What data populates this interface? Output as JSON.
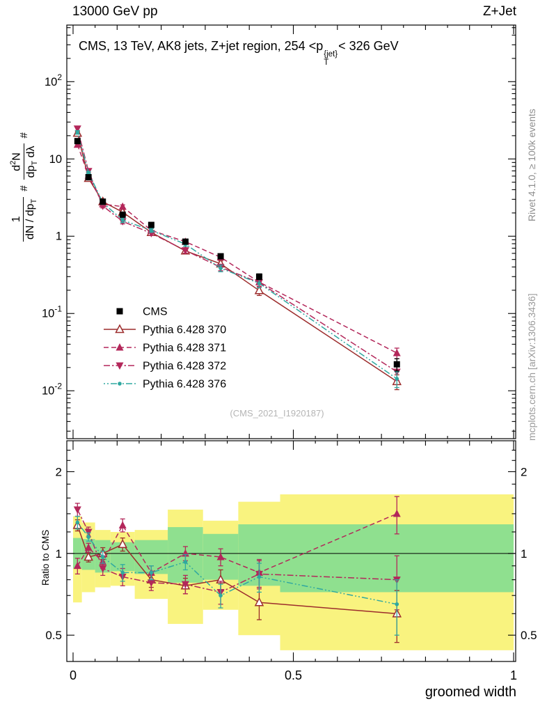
{
  "header": {
    "left_label": "13000 GeV pp",
    "right_label": "Z+Jet"
  },
  "main_title": {
    "prefix": "CMS, 13 TeV, AK8 jets, Z+jet region, 254 <p",
    "sup": "{jet}",
    "sub": "T",
    "suffix": "< 326 GeV"
  },
  "side_labels": {
    "rivet": "Rivet 4.1.0, ≥ 100k events",
    "mcplots": "mcplots.cern.ch [arXiv:1306.3436]"
  },
  "watermark": "(CMS_2021_I1920187)",
  "axes": {
    "x_label": "groomed width",
    "ratio_y_label": "Ratio to CMS",
    "y_label": {
      "hash_a": "#",
      "hash_b": "#",
      "f1_num": "1",
      "f1_den_pre": "dN / dp",
      "f1_den_sub": "T",
      "f2_num_pre": "d",
      "f2_num_sup": "2",
      "f2_num_post": "N",
      "f2_den_pre": "dp",
      "f2_den_sub": "T",
      "f2_den_post": " dλ"
    }
  },
  "chart_data": {
    "type": "line",
    "title": "CMS, 13 TeV, AK8 jets, Z+jet region, 254 < pT{jet} < 326 GeV",
    "xlabel": "groomed width",
    "ylabel": "1/(dN/dpT) d2N/(dpT dlambda)",
    "ratio_ylabel": "Ratio to CMS",
    "x_range": [
      -0.0142,
      1.0047
    ],
    "y_range_log": [
      0.0024,
      540
    ],
    "ratio_range_log": [
      0.4,
      2.6
    ],
    "x_ticks": [
      0,
      0.5,
      1
    ],
    "x_tick_labels": [
      "0",
      "0.5",
      "1"
    ],
    "y_tick_defs": [
      {
        "v": 100,
        "base": "10",
        "exp": "2"
      },
      {
        "v": 10,
        "base": "10",
        "exp": ""
      },
      {
        "v": 1,
        "base": "1",
        "exp": ""
      },
      {
        "v": 0.1,
        "base": "10",
        "exp": "-1"
      },
      {
        "v": 0.01,
        "base": "10",
        "exp": "-2"
      }
    ],
    "ratio_ticks": [
      2,
      1,
      0.5
    ],
    "ratio_minor_ticks": [
      0.6,
      0.7,
      0.8,
      0.9,
      1.2,
      1.4,
      1.6,
      1.8,
      2.2,
      2.4
    ],
    "bin_edges": [
      0,
      0.02,
      0.05,
      0.085,
      0.14,
      0.215,
      0.295,
      0.375,
      0.47,
      1.0
    ],
    "x": [
      0.01,
      0.035,
      0.0675,
      0.1125,
      0.1775,
      0.255,
      0.335,
      0.4225,
      0.735
    ],
    "cms": {
      "label": "CMS",
      "color": "#000000",
      "marker": "square",
      "values": [
        17,
        5.8,
        2.8,
        1.9,
        1.4,
        0.85,
        0.55,
        0.3,
        0.022
      ],
      "errors": [
        1.2,
        0.35,
        0.18,
        0.12,
        0.09,
        0.06,
        0.04,
        0.025,
        0.004
      ]
    },
    "series": [
      {
        "label": "Pythia 6.428 370",
        "color": "#9c2c2c",
        "line": "solid",
        "marker": "triangle-open",
        "ratio": [
          1.27,
          0.97,
          1.0,
          1.08,
          0.8,
          0.76,
          0.8,
          0.66,
          0.6
        ],
        "ratio_err": [
          0.06,
          0.04,
          0.05,
          0.06,
          0.05,
          0.05,
          0.07,
          0.09,
          0.13
        ]
      },
      {
        "label": "Pythia 6.428 371",
        "color": "#b3275a",
        "line": "dash",
        "marker": "triangle-filled",
        "ratio": [
          0.9,
          1.05,
          0.93,
          1.27,
          0.85,
          1.0,
          0.97,
          0.85,
          1.4
        ],
        "ratio_err": [
          0.06,
          0.04,
          0.05,
          0.07,
          0.05,
          0.06,
          0.07,
          0.1,
          0.22
        ]
      },
      {
        "label": "Pythia 6.428 372",
        "color": "#b3275a",
        "line": "dashdot",
        "marker": "triangle-down-filled",
        "ratio": [
          1.45,
          1.2,
          0.88,
          0.82,
          0.78,
          0.77,
          0.72,
          0.84,
          0.8
        ],
        "ratio_err": [
          0.08,
          0.05,
          0.05,
          0.06,
          0.05,
          0.06,
          0.07,
          0.1,
          0.18
        ]
      },
      {
        "label": "Pythia 6.428 376",
        "color": "#2fa8a0",
        "line": "dashdotdot",
        "marker": "dot",
        "ratio": [
          1.3,
          1.15,
          0.97,
          0.85,
          0.85,
          0.93,
          0.7,
          0.82,
          0.65
        ],
        "ratio_err": [
          0.07,
          0.04,
          0.05,
          0.06,
          0.05,
          0.06,
          0.07,
          0.1,
          0.15
        ]
      }
    ],
    "bands": {
      "yellow_color": "#f9f37f",
      "green_color": "#8fe08f",
      "yellow": [
        [
          0.66,
          1.37
        ],
        [
          0.72,
          1.3
        ],
        [
          0.75,
          1.22
        ],
        [
          0.76,
          1.2
        ],
        [
          0.68,
          1.22
        ],
        [
          0.55,
          1.45
        ],
        [
          0.62,
          1.32
        ],
        [
          0.5,
          1.55
        ],
        [
          0.44,
          1.65
        ]
      ],
      "green": [
        [
          0.88,
          1.14
        ],
        [
          0.87,
          1.13
        ],
        [
          0.85,
          1.12
        ],
        [
          0.86,
          1.1
        ],
        [
          0.84,
          1.12
        ],
        [
          0.78,
          1.25
        ],
        [
          0.8,
          1.18
        ],
        [
          0.76,
          1.28
        ],
        [
          0.72,
          1.28
        ]
      ]
    },
    "legend": [
      "CMS",
      "Pythia 6.428 370",
      "Pythia 6.428 371",
      "Pythia 6.428 372",
      "Pythia 6.428 376"
    ]
  }
}
